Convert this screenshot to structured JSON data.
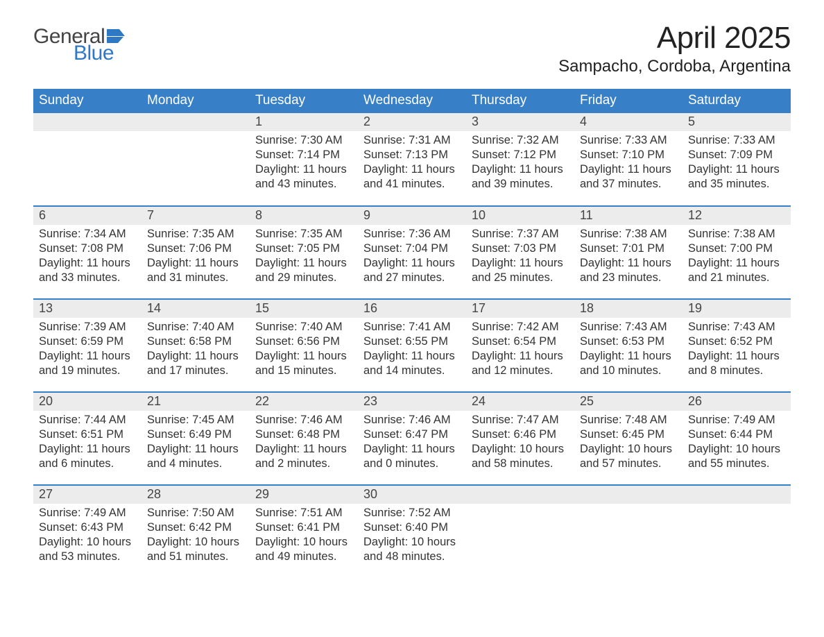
{
  "logo": {
    "text1": "General",
    "text2": "Blue",
    "color1": "#444444",
    "color2": "#2f78c3",
    "flag_color": "#2f78c3"
  },
  "title": "April 2025",
  "location": "Sampacho, Cordoba, Argentina",
  "style": {
    "header_bg": "#377fc6",
    "header_fg": "#ffffff",
    "daynum_bg": "#ececec",
    "row_divider": "#377fc6",
    "body_font_color": "#333333",
    "title_font_size_pt": 33,
    "location_font_size_pt": 18,
    "header_font_size_pt": 14,
    "cell_font_size_pt": 12
  },
  "weekdays": [
    "Sunday",
    "Monday",
    "Tuesday",
    "Wednesday",
    "Thursday",
    "Friday",
    "Saturday"
  ],
  "labels": {
    "sunrise": "Sunrise: ",
    "sunset": "Sunset: ",
    "daylight": "Daylight: "
  },
  "weeks": [
    [
      null,
      null,
      {
        "n": "1",
        "sunrise": "7:30 AM",
        "sunset": "7:14 PM",
        "daylight": "11 hours and 43 minutes."
      },
      {
        "n": "2",
        "sunrise": "7:31 AM",
        "sunset": "7:13 PM",
        "daylight": "11 hours and 41 minutes."
      },
      {
        "n": "3",
        "sunrise": "7:32 AM",
        "sunset": "7:12 PM",
        "daylight": "11 hours and 39 minutes."
      },
      {
        "n": "4",
        "sunrise": "7:33 AM",
        "sunset": "7:10 PM",
        "daylight": "11 hours and 37 minutes."
      },
      {
        "n": "5",
        "sunrise": "7:33 AM",
        "sunset": "7:09 PM",
        "daylight": "11 hours and 35 minutes."
      }
    ],
    [
      {
        "n": "6",
        "sunrise": "7:34 AM",
        "sunset": "7:08 PM",
        "daylight": "11 hours and 33 minutes."
      },
      {
        "n": "7",
        "sunrise": "7:35 AM",
        "sunset": "7:06 PM",
        "daylight": "11 hours and 31 minutes."
      },
      {
        "n": "8",
        "sunrise": "7:35 AM",
        "sunset": "7:05 PM",
        "daylight": "11 hours and 29 minutes."
      },
      {
        "n": "9",
        "sunrise": "7:36 AM",
        "sunset": "7:04 PM",
        "daylight": "11 hours and 27 minutes."
      },
      {
        "n": "10",
        "sunrise": "7:37 AM",
        "sunset": "7:03 PM",
        "daylight": "11 hours and 25 minutes."
      },
      {
        "n": "11",
        "sunrise": "7:38 AM",
        "sunset": "7:01 PM",
        "daylight": "11 hours and 23 minutes."
      },
      {
        "n": "12",
        "sunrise": "7:38 AM",
        "sunset": "7:00 PM",
        "daylight": "11 hours and 21 minutes."
      }
    ],
    [
      {
        "n": "13",
        "sunrise": "7:39 AM",
        "sunset": "6:59 PM",
        "daylight": "11 hours and 19 minutes."
      },
      {
        "n": "14",
        "sunrise": "7:40 AM",
        "sunset": "6:58 PM",
        "daylight": "11 hours and 17 minutes."
      },
      {
        "n": "15",
        "sunrise": "7:40 AM",
        "sunset": "6:56 PM",
        "daylight": "11 hours and 15 minutes."
      },
      {
        "n": "16",
        "sunrise": "7:41 AM",
        "sunset": "6:55 PM",
        "daylight": "11 hours and 14 minutes."
      },
      {
        "n": "17",
        "sunrise": "7:42 AM",
        "sunset": "6:54 PM",
        "daylight": "11 hours and 12 minutes."
      },
      {
        "n": "18",
        "sunrise": "7:43 AM",
        "sunset": "6:53 PM",
        "daylight": "11 hours and 10 minutes."
      },
      {
        "n": "19",
        "sunrise": "7:43 AM",
        "sunset": "6:52 PM",
        "daylight": "11 hours and 8 minutes."
      }
    ],
    [
      {
        "n": "20",
        "sunrise": "7:44 AM",
        "sunset": "6:51 PM",
        "daylight": "11 hours and 6 minutes."
      },
      {
        "n": "21",
        "sunrise": "7:45 AM",
        "sunset": "6:49 PM",
        "daylight": "11 hours and 4 minutes."
      },
      {
        "n": "22",
        "sunrise": "7:46 AM",
        "sunset": "6:48 PM",
        "daylight": "11 hours and 2 minutes."
      },
      {
        "n": "23",
        "sunrise": "7:46 AM",
        "sunset": "6:47 PM",
        "daylight": "11 hours and 0 minutes."
      },
      {
        "n": "24",
        "sunrise": "7:47 AM",
        "sunset": "6:46 PM",
        "daylight": "10 hours and 58 minutes."
      },
      {
        "n": "25",
        "sunrise": "7:48 AM",
        "sunset": "6:45 PM",
        "daylight": "10 hours and 57 minutes."
      },
      {
        "n": "26",
        "sunrise": "7:49 AM",
        "sunset": "6:44 PM",
        "daylight": "10 hours and 55 minutes."
      }
    ],
    [
      {
        "n": "27",
        "sunrise": "7:49 AM",
        "sunset": "6:43 PM",
        "daylight": "10 hours and 53 minutes."
      },
      {
        "n": "28",
        "sunrise": "7:50 AM",
        "sunset": "6:42 PM",
        "daylight": "10 hours and 51 minutes."
      },
      {
        "n": "29",
        "sunrise": "7:51 AM",
        "sunset": "6:41 PM",
        "daylight": "10 hours and 49 minutes."
      },
      {
        "n": "30",
        "sunrise": "7:52 AM",
        "sunset": "6:40 PM",
        "daylight": "10 hours and 48 minutes."
      },
      null,
      null,
      null
    ]
  ]
}
